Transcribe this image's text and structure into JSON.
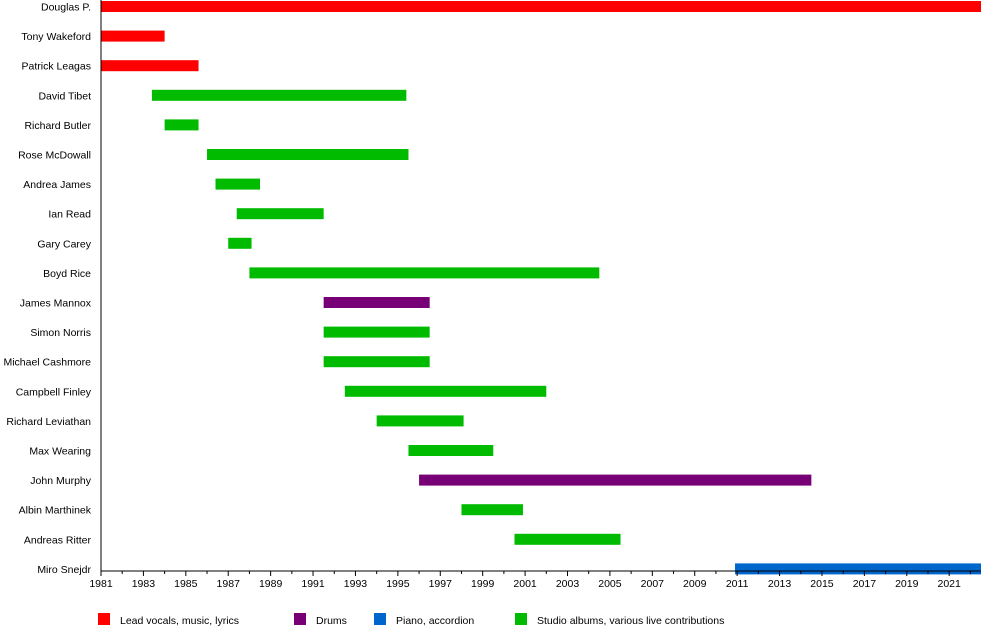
{
  "chart_data": {
    "type": "bar",
    "subtype": "timeline",
    "title": "",
    "xlabel": "",
    "ylabel": "",
    "xlim": [
      1981,
      2022.5
    ],
    "x_ticks": [
      "1981",
      "1983",
      "1985",
      "1987",
      "1989",
      "1991",
      "1993",
      "1995",
      "1997",
      "1999",
      "2001",
      "2003",
      "2005",
      "2007",
      "2009",
      "2011",
      "2013",
      "2015",
      "2017",
      "2019",
      "2021"
    ],
    "members": [
      {
        "name": "Douglas P.",
        "start": 1981.0,
        "end": 2022.5,
        "role": "lead"
      },
      {
        "name": "Tony Wakeford",
        "start": 1981.0,
        "end": 1984.0,
        "role": "lead"
      },
      {
        "name": "Patrick Leagas",
        "start": 1981.0,
        "end": 1985.6,
        "role": "lead"
      },
      {
        "name": "David Tibet",
        "start": 1983.4,
        "end": 1995.4,
        "role": "studio"
      },
      {
        "name": "Richard Butler",
        "start": 1984.0,
        "end": 1985.6,
        "role": "studio"
      },
      {
        "name": "Rose McDowall",
        "start": 1986.0,
        "end": 1995.5,
        "role": "studio"
      },
      {
        "name": "Andrea James",
        "start": 1986.4,
        "end": 1988.5,
        "role": "studio"
      },
      {
        "name": "Ian Read",
        "start": 1987.4,
        "end": 1991.5,
        "role": "studio"
      },
      {
        "name": "Gary Carey",
        "start": 1987.0,
        "end": 1988.1,
        "role": "studio"
      },
      {
        "name": "Boyd Rice",
        "start": 1988.0,
        "end": 2004.5,
        "role": "studio"
      },
      {
        "name": "James Mannox",
        "start": 1991.5,
        "end": 1996.5,
        "role": "drums"
      },
      {
        "name": "Simon Norris",
        "start": 1991.5,
        "end": 1996.5,
        "role": "studio"
      },
      {
        "name": "Michael Cashmore",
        "start": 1991.5,
        "end": 1996.5,
        "role": "studio"
      },
      {
        "name": "Campbell Finley",
        "start": 1992.5,
        "end": 2002.0,
        "role": "studio"
      },
      {
        "name": "Richard Leviathan",
        "start": 1994.0,
        "end": 1998.1,
        "role": "studio"
      },
      {
        "name": "Max Wearing",
        "start": 1995.5,
        "end": 1999.5,
        "role": "studio"
      },
      {
        "name": "John Murphy",
        "start": 1996.0,
        "end": 2014.5,
        "role": "drums"
      },
      {
        "name": "Albin Marthinek",
        "start": 1998.0,
        "end": 2000.9,
        "role": "studio"
      },
      {
        "name": "Andreas Ritter",
        "start": 2000.5,
        "end": 2005.5,
        "role": "studio"
      },
      {
        "name": "Miro Snejdr",
        "start": 2010.9,
        "end": 2022.5,
        "role": "piano"
      }
    ],
    "legend": {
      "placement": "bottom",
      "items": [
        {
          "key": "lead",
          "label": "Lead vocals, music, lyrics",
          "color": "#ff0000"
        },
        {
          "key": "drums",
          "label": "Drums",
          "color": "#770077"
        },
        {
          "key": "piano",
          "label": "Piano, accordion",
          "color": "#0066cc"
        },
        {
          "key": "studio",
          "label": "Studio albums, various live contributions",
          "color": "#00bb00"
        }
      ]
    }
  }
}
